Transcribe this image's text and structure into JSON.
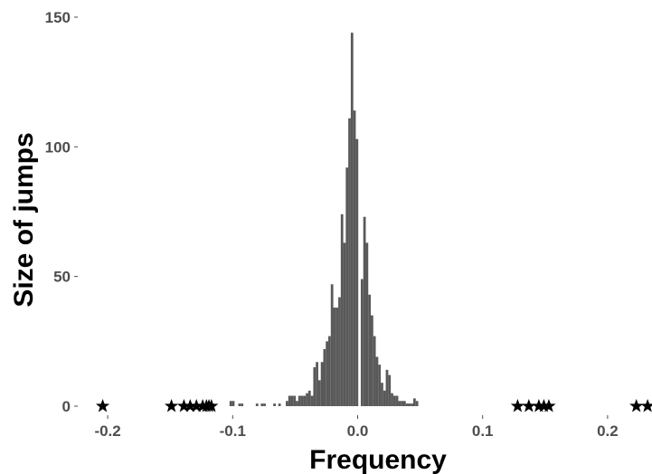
{
  "chart_data": {
    "type": "bar",
    "title": "",
    "xlabel": "Frequency",
    "ylabel": "Size of jumps",
    "xlim": [
      -0.22,
      0.235
    ],
    "ylim": [
      0,
      150
    ],
    "xticks": [
      -0.2,
      -0.1,
      0.0,
      0.1,
      0.2
    ],
    "xtick_labels": [
      "-0.2",
      "-0.1",
      "0.0",
      "0.1",
      "0.2"
    ],
    "yticks": [
      0,
      50,
      100,
      150
    ],
    "ytick_labels": [
      "0",
      "50",
      "100",
      "150"
    ],
    "grid": false,
    "legend": "none",
    "bar_color": "#595959",
    "marker_color": "#000000",
    "bin_width": 0.002,
    "bars": [
      {
        "x": -0.1015,
        "y": 2
      },
      {
        "x": -0.0995,
        "y": 2
      },
      {
        "x": -0.0945,
        "y": 1
      },
      {
        "x": -0.0925,
        "y": 1
      },
      {
        "x": -0.0805,
        "y": 1
      },
      {
        "x": -0.0765,
        "y": 1
      },
      {
        "x": -0.0745,
        "y": 1
      },
      {
        "x": -0.0665,
        "y": 1
      },
      {
        "x": -0.0625,
        "y": 1
      },
      {
        "x": -0.0565,
        "y": 2
      },
      {
        "x": -0.0545,
        "y": 4
      },
      {
        "x": -0.0525,
        "y": 4
      },
      {
        "x": -0.0505,
        "y": 4
      },
      {
        "x": -0.0485,
        "y": 2
      },
      {
        "x": -0.0465,
        "y": 4
      },
      {
        "x": -0.0445,
        "y": 4
      },
      {
        "x": -0.0425,
        "y": 4
      },
      {
        "x": -0.0405,
        "y": 5
      },
      {
        "x": -0.0385,
        "y": 6
      },
      {
        "x": -0.0365,
        "y": 4
      },
      {
        "x": -0.0345,
        "y": 15
      },
      {
        "x": -0.0325,
        "y": 17
      },
      {
        "x": -0.0305,
        "y": 10
      },
      {
        "x": -0.0285,
        "y": 17
      },
      {
        "x": -0.0265,
        "y": 22
      },
      {
        "x": -0.0245,
        "y": 25
      },
      {
        "x": -0.0225,
        "y": 27
      },
      {
        "x": -0.0205,
        "y": 47
      },
      {
        "x": -0.0185,
        "y": 38
      },
      {
        "x": -0.0165,
        "y": 38
      },
      {
        "x": -0.0145,
        "y": 42
      },
      {
        "x": -0.0125,
        "y": 74
      },
      {
        "x": -0.0105,
        "y": 63
      },
      {
        "x": -0.0085,
        "y": 92
      },
      {
        "x": -0.0065,
        "y": 111
      },
      {
        "x": -0.0045,
        "y": 144
      },
      {
        "x": -0.0025,
        "y": 114
      },
      {
        "x": -0.0005,
        "y": 103
      },
      {
        "x": 0.0035,
        "y": 49
      },
      {
        "x": 0.0055,
        "y": 73
      },
      {
        "x": 0.0075,
        "y": 63
      },
      {
        "x": 0.0095,
        "y": 43
      },
      {
        "x": 0.0115,
        "y": 35
      },
      {
        "x": 0.0135,
        "y": 27
      },
      {
        "x": 0.0155,
        "y": 19
      },
      {
        "x": 0.0175,
        "y": 16
      },
      {
        "x": 0.0195,
        "y": 9
      },
      {
        "x": 0.0215,
        "y": 6
      },
      {
        "x": 0.0235,
        "y": 14
      },
      {
        "x": 0.0255,
        "y": 12
      },
      {
        "x": 0.0275,
        "y": 5
      },
      {
        "x": 0.0295,
        "y": 4
      },
      {
        "x": 0.0315,
        "y": 4
      },
      {
        "x": 0.0335,
        "y": 2
      },
      {
        "x": 0.0355,
        "y": 2
      },
      {
        "x": 0.0375,
        "y": 2
      },
      {
        "x": 0.0395,
        "y": 1
      },
      {
        "x": 0.0415,
        "y": 1
      },
      {
        "x": 0.0435,
        "y": 1
      },
      {
        "x": 0.0455,
        "y": 3
      },
      {
        "x": 0.0475,
        "y": 2
      }
    ],
    "markers": {
      "shape": "star",
      "y": 0,
      "x": [
        -0.204,
        -0.149,
        -0.139,
        -0.134,
        -0.129,
        -0.124,
        -0.121,
        -0.119,
        -0.117,
        0.128,
        0.137,
        0.145,
        0.149,
        0.153,
        0.223,
        0.232
      ]
    }
  }
}
